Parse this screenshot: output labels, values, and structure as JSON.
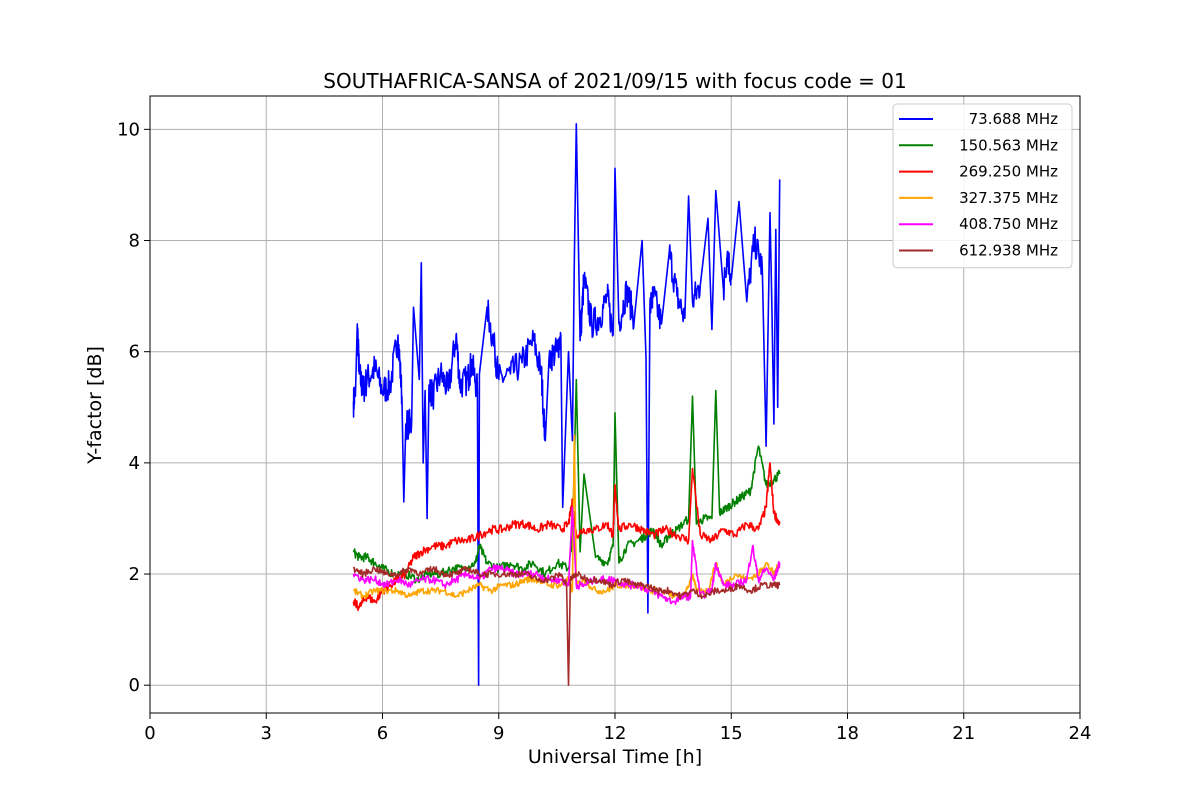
{
  "chart_data": {
    "type": "line",
    "title": "SOUTHAFRICA-SANSA of 2021/09/15 with focus code = 01",
    "xlabel": "Universal Time [h]",
    "ylabel": "Y-factor [dB]",
    "xlim": [
      0,
      24
    ],
    "ylim": [
      -0.5,
      10.6
    ],
    "xticks": [
      0,
      3,
      6,
      9,
      12,
      15,
      18,
      21,
      24
    ],
    "yticks": [
      0,
      2,
      4,
      6,
      8,
      10
    ],
    "grid": true,
    "legend_position": "top-right",
    "series": [
      {
        "name": "73.688 MHz",
        "color": "#0000ff",
        "x": [
          5.25,
          5.3,
          5.35,
          5.4,
          5.5,
          5.6,
          5.8,
          6.0,
          6.2,
          6.4,
          6.5,
          6.55,
          6.6,
          6.75,
          6.8,
          6.95,
          7.0,
          7.05,
          7.1,
          7.15,
          7.2,
          7.3,
          7.5,
          7.7,
          7.9,
          8.0,
          8.2,
          8.3,
          8.45,
          8.48,
          8.5,
          8.7,
          8.9,
          9.0,
          9.3,
          9.6,
          9.9,
          10.1,
          10.2,
          10.3,
          10.5,
          10.6,
          10.65,
          10.8,
          10.9,
          10.95,
          11.0,
          11.1,
          11.2,
          11.4,
          11.6,
          11.8,
          11.95,
          12.0,
          12.1,
          12.3,
          12.5,
          12.7,
          12.8,
          12.85,
          12.9,
          13.0,
          13.2,
          13.4,
          13.6,
          13.8,
          13.9,
          14.0,
          14.2,
          14.4,
          14.5,
          14.6,
          14.8,
          14.9,
          15.0,
          15.2,
          15.4,
          15.6,
          15.8,
          15.9,
          16.0,
          16.05,
          16.1,
          16.15,
          16.2,
          16.25
        ],
        "values": [
          5.1,
          5.2,
          6.5,
          5.6,
          5.3,
          5.5,
          5.7,
          5.3,
          5.4,
          6.3,
          5.2,
          3.3,
          4.7,
          4.7,
          6.8,
          5.5,
          7.6,
          4.0,
          5.3,
          3.0,
          5.4,
          5.2,
          5.6,
          5.3,
          6.3,
          5.4,
          5.5,
          5.8,
          5.3,
          0.0,
          5.6,
          6.8,
          6.0,
          5.5,
          5.6,
          5.8,
          6.2,
          5.6,
          4.4,
          5.9,
          6.0,
          6.3,
          3.2,
          6.0,
          4.4,
          7.6,
          10.1,
          6.2,
          7.3,
          6.5,
          6.6,
          7.0,
          6.3,
          9.3,
          6.5,
          7.1,
          6.6,
          8.0,
          5.9,
          1.3,
          6.8,
          7.0,
          6.5,
          7.8,
          7.0,
          6.6,
          8.8,
          6.9,
          7.2,
          8.4,
          6.4,
          8.9,
          7.1,
          7.8,
          7.3,
          8.7,
          6.9,
          8.0,
          7.5,
          4.3,
          8.5,
          6.8,
          4.7,
          8.2,
          5.0,
          9.1
        ]
      },
      {
        "name": "150.563 MHz",
        "color": "#008000",
        "x": [
          5.25,
          5.4,
          5.6,
          5.8,
          6.0,
          6.3,
          6.6,
          6.9,
          7.2,
          7.5,
          7.8,
          8.1,
          8.4,
          8.5,
          8.7,
          9.0,
          9.3,
          9.6,
          9.9,
          10.2,
          10.5,
          10.8,
          10.9,
          11.0,
          11.1,
          11.2,
          11.5,
          11.8,
          11.95,
          12.0,
          12.1,
          12.3,
          12.6,
          12.8,
          13.0,
          13.2,
          13.4,
          13.6,
          13.9,
          14.0,
          14.1,
          14.3,
          14.5,
          14.6,
          14.7,
          14.9,
          15.1,
          15.3,
          15.5,
          15.7,
          15.9,
          16.1,
          16.25
        ],
        "values": [
          2.4,
          2.3,
          2.3,
          2.2,
          2.1,
          2.0,
          2.0,
          1.9,
          2.0,
          2.0,
          2.1,
          2.1,
          2.2,
          2.5,
          2.2,
          2.1,
          2.2,
          2.1,
          2.2,
          2.0,
          2.2,
          2.1,
          2.6,
          5.5,
          2.4,
          3.8,
          2.3,
          2.2,
          2.5,
          4.9,
          2.2,
          2.5,
          2.6,
          2.7,
          2.8,
          2.5,
          2.7,
          2.8,
          3.0,
          5.2,
          2.9,
          3.0,
          3.0,
          5.3,
          3.1,
          3.2,
          3.3,
          3.4,
          3.5,
          4.3,
          3.6,
          3.7,
          3.8
        ]
      },
      {
        "name": "269.250 MHz",
        "color": "#ff0000",
        "x": [
          5.25,
          5.4,
          5.6,
          5.8,
          6.0,
          6.2,
          6.4,
          6.6,
          6.8,
          7.0,
          7.3,
          7.6,
          7.9,
          8.2,
          8.5,
          8.8,
          9.1,
          9.4,
          9.7,
          10.0,
          10.3,
          10.6,
          10.8,
          10.9,
          11.0,
          11.2,
          11.5,
          11.8,
          11.95,
          12.0,
          12.1,
          12.4,
          12.7,
          13.0,
          13.3,
          13.6,
          13.9,
          14.0,
          14.2,
          14.5,
          14.8,
          15.1,
          15.4,
          15.7,
          15.9,
          16.0,
          16.1,
          16.25
        ],
        "values": [
          1.5,
          1.4,
          1.6,
          1.5,
          1.7,
          1.8,
          1.9,
          2.0,
          2.3,
          2.4,
          2.5,
          2.5,
          2.6,
          2.6,
          2.7,
          2.8,
          2.8,
          2.9,
          2.9,
          2.8,
          2.9,
          2.8,
          2.9,
          3.3,
          2.7,
          2.8,
          2.8,
          2.9,
          2.7,
          3.6,
          2.8,
          2.9,
          2.8,
          2.7,
          2.8,
          2.7,
          2.6,
          3.9,
          2.7,
          2.6,
          2.8,
          2.7,
          2.9,
          2.8,
          3.2,
          4.0,
          3.1,
          2.9
        ]
      },
      {
        "name": "327.375 MHz",
        "color": "#ffa500",
        "x": [
          5.25,
          5.5,
          5.8,
          6.1,
          6.4,
          6.7,
          7.0,
          7.3,
          7.6,
          7.9,
          8.2,
          8.5,
          8.8,
          9.1,
          9.4,
          9.7,
          10.0,
          10.3,
          10.6,
          10.8,
          10.9,
          10.95,
          11.0,
          11.2,
          11.5,
          11.8,
          12.0,
          12.3,
          12.6,
          12.9,
          13.2,
          13.5,
          13.8,
          14.0,
          14.1,
          14.4,
          14.6,
          14.8,
          15.1,
          15.4,
          15.7,
          15.9,
          16.1,
          16.25
        ],
        "values": [
          1.7,
          1.6,
          1.7,
          1.7,
          1.7,
          1.6,
          1.7,
          1.7,
          1.7,
          1.6,
          1.7,
          1.8,
          1.7,
          1.8,
          1.8,
          1.9,
          1.9,
          1.8,
          1.8,
          1.9,
          1.7,
          4.5,
          1.8,
          1.9,
          1.7,
          1.7,
          1.8,
          1.8,
          1.8,
          1.7,
          1.7,
          1.6,
          1.6,
          2.0,
          1.7,
          1.7,
          2.2,
          1.8,
          2.0,
          1.9,
          2.0,
          2.2,
          2.0,
          2.2
        ]
      },
      {
        "name": "408.750 MHz",
        "color": "#ff00ff",
        "x": [
          5.25,
          5.5,
          5.8,
          6.1,
          6.4,
          6.7,
          7.0,
          7.3,
          7.6,
          7.9,
          8.2,
          8.5,
          8.8,
          9.1,
          9.4,
          9.7,
          10.0,
          10.3,
          10.6,
          10.8,
          10.9,
          11.0,
          11.2,
          11.5,
          11.8,
          12.0,
          12.3,
          12.6,
          12.9,
          13.2,
          13.5,
          13.8,
          13.95,
          14.0,
          14.2,
          14.5,
          14.6,
          14.8,
          15.1,
          15.4,
          15.55,
          15.7,
          15.9,
          16.1,
          16.25
        ],
        "values": [
          2.0,
          1.9,
          1.9,
          1.8,
          1.9,
          1.8,
          1.9,
          1.9,
          1.8,
          1.9,
          2.0,
          1.9,
          2.1,
          2.1,
          2.0,
          2.0,
          2.0,
          1.9,
          1.9,
          1.8,
          3.2,
          1.8,
          1.8,
          1.9,
          1.9,
          1.9,
          1.8,
          1.8,
          1.7,
          1.6,
          1.5,
          1.6,
          1.6,
          2.6,
          1.6,
          1.7,
          2.2,
          1.8,
          1.8,
          1.9,
          2.5,
          1.9,
          2.1,
          1.9,
          2.2
        ]
      },
      {
        "name": "612.938 MHz",
        "color": "#a52a2a",
        "x": [
          5.25,
          5.5,
          5.8,
          6.1,
          6.4,
          6.7,
          7.0,
          7.3,
          7.6,
          7.9,
          8.2,
          8.5,
          8.8,
          9.1,
          9.4,
          9.7,
          10.0,
          10.3,
          10.6,
          10.75,
          10.8,
          10.85,
          11.0,
          11.3,
          11.6,
          11.9,
          12.2,
          12.5,
          12.8,
          13.1,
          13.4,
          13.7,
          14.0,
          14.3,
          14.6,
          14.9,
          15.2,
          15.5,
          15.8,
          16.1,
          16.25
        ],
        "values": [
          2.1,
          2.0,
          2.1,
          2.0,
          2.0,
          2.1,
          2.0,
          2.1,
          2.0,
          2.0,
          2.1,
          2.0,
          2.0,
          2.0,
          2.0,
          2.0,
          1.9,
          1.9,
          2.0,
          1.8,
          0.0,
          1.9,
          2.0,
          1.9,
          1.9,
          1.8,
          1.9,
          1.8,
          1.8,
          1.7,
          1.7,
          1.6,
          1.7,
          1.6,
          1.7,
          1.7,
          1.8,
          1.7,
          1.8,
          1.8,
          1.8
        ]
      }
    ]
  }
}
